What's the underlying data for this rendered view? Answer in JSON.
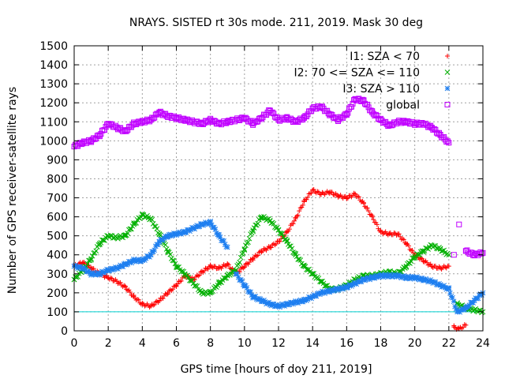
{
  "chart_data": {
    "type": "scatter",
    "title": "NRAYS. SISTED rt 30s mode. 211, 2019. Mask 30 deg",
    "xlabel": "GPS time [hours of doy 211, 2019]",
    "ylabel": "Number of GPS receiver-satellite rays",
    "xlim": [
      0,
      24
    ],
    "ylim": [
      0,
      1500
    ],
    "xticks": [
      0,
      2,
      4,
      6,
      8,
      10,
      12,
      14,
      16,
      18,
      20,
      22,
      24
    ],
    "yticks": [
      0,
      100,
      200,
      300,
      400,
      500,
      600,
      700,
      800,
      900,
      1000,
      1100,
      1200,
      1300,
      1400,
      1500
    ],
    "grid": true,
    "legend_position": "top-right",
    "reference_line": {
      "y": 100,
      "color": "#00d0d0"
    },
    "series": [
      {
        "name": "I1: SZA < 70",
        "color": "#ff0000",
        "marker": "+",
        "x": [
          0,
          0.5,
          1,
          1.5,
          2,
          2.5,
          3,
          3.5,
          4,
          4.5,
          5,
          5.5,
          6,
          6.5,
          7,
          7.5,
          8,
          8.5,
          9,
          9.5,
          10,
          10.5,
          11,
          11.5,
          12,
          12.5,
          13,
          13.5,
          14,
          14.5,
          15,
          15.5,
          16,
          16.5,
          17,
          17.5,
          18,
          18.5,
          19,
          19.5,
          20,
          20.5,
          21,
          21.5,
          22,
          22.3,
          22.6,
          23
        ],
        "y": [
          340,
          360,
          330,
          300,
          280,
          260,
          230,
          180,
          140,
          130,
          160,
          200,
          240,
          290,
          270,
          310,
          340,
          330,
          350,
          300,
          340,
          380,
          420,
          440,
          470,
          520,
          590,
          680,
          740,
          720,
          730,
          710,
          700,
          720,
          670,
          600,
          520,
          510,
          510,
          460,
          400,
          370,
          340,
          330,
          340,
          20,
          10,
          30
        ]
      },
      {
        "name": "I2: 70 <= SZA <= 110",
        "color": "#00b000",
        "marker": "x",
        "x": [
          0,
          0.5,
          1,
          1.5,
          2,
          2.5,
          3,
          3.5,
          4,
          4.5,
          5,
          5.5,
          6,
          6.5,
          7,
          7.5,
          8,
          8.5,
          9,
          9.5,
          10,
          10.5,
          11,
          11.5,
          12,
          12.5,
          13,
          13.5,
          14,
          14.5,
          15,
          15.5,
          16,
          16.5,
          17,
          17.5,
          18,
          18.5,
          19,
          19.5,
          20,
          20.5,
          21,
          21.5,
          22,
          22.5,
          23,
          23.5,
          24
        ],
        "y": [
          270,
          320,
          380,
          460,
          500,
          490,
          500,
          560,
          610,
          590,
          510,
          420,
          340,
          300,
          250,
          200,
          200,
          250,
          290,
          320,
          430,
          530,
          600,
          580,
          530,
          470,
          400,
          340,
          300,
          260,
          220,
          220,
          240,
          270,
          290,
          290,
          300,
          310,
          300,
          340,
          390,
          420,
          450,
          430,
          400,
          140,
          120,
          110,
          100
        ]
      },
      {
        "name": "I3: SZA > 110",
        "color": "#1e7ff0",
        "marker": "*",
        "x": [
          0,
          0.5,
          1,
          1.5,
          2,
          2.5,
          3,
          3.5,
          4,
          4.5,
          5,
          5.5,
          6,
          6.5,
          7,
          7.5,
          8,
          8.5,
          9,
          9.5,
          10,
          10.5,
          11,
          11.5,
          12,
          12.5,
          13,
          13.5,
          14,
          14.5,
          15,
          15.5,
          16,
          16.5,
          17,
          17.5,
          18,
          18.5,
          19,
          19.5,
          20,
          20.5,
          21,
          21.5,
          22,
          22.5,
          23,
          23.5,
          24
        ],
        "y": [
          340,
          330,
          300,
          300,
          320,
          330,
          350,
          370,
          370,
          400,
          470,
          500,
          510,
          520,
          540,
          560,
          570,
          500,
          440,
          300,
          240,
          180,
          160,
          140,
          130,
          140,
          150,
          160,
          180,
          200,
          210,
          220,
          230,
          250,
          270,
          280,
          290,
          290,
          290,
          280,
          280,
          270,
          260,
          240,
          220,
          100,
          120,
          160,
          200
        ]
      },
      {
        "name": "global",
        "color": "#c000ff",
        "marker": "square",
        "x": [
          0,
          0.5,
          1,
          1.5,
          2,
          2.5,
          3,
          3.5,
          4,
          4.5,
          5,
          5.5,
          6,
          6.5,
          7,
          7.5,
          8,
          8.5,
          9,
          9.5,
          10,
          10.5,
          11,
          11.5,
          12,
          12.5,
          13,
          13.5,
          14,
          14.5,
          15,
          15.5,
          16,
          16.5,
          17,
          17.5,
          18,
          18.5,
          19,
          19.5,
          20,
          20.5,
          21,
          21.5,
          22,
          22.3,
          22.6,
          23,
          23.5,
          24
        ],
        "y": [
          970,
          990,
          1000,
          1030,
          1090,
          1070,
          1050,
          1090,
          1100,
          1110,
          1150,
          1130,
          1120,
          1110,
          1100,
          1090,
          1110,
          1090,
          1100,
          1110,
          1120,
          1090,
          1120,
          1160,
          1110,
          1120,
          1100,
          1120,
          1170,
          1180,
          1140,
          1110,
          1140,
          1220,
          1210,
          1150,
          1110,
          1080,
          1100,
          1100,
          1090,
          1090,
          1070,
          1030,
          990,
          400,
          560,
          420,
          400,
          410
        ]
      }
    ]
  }
}
